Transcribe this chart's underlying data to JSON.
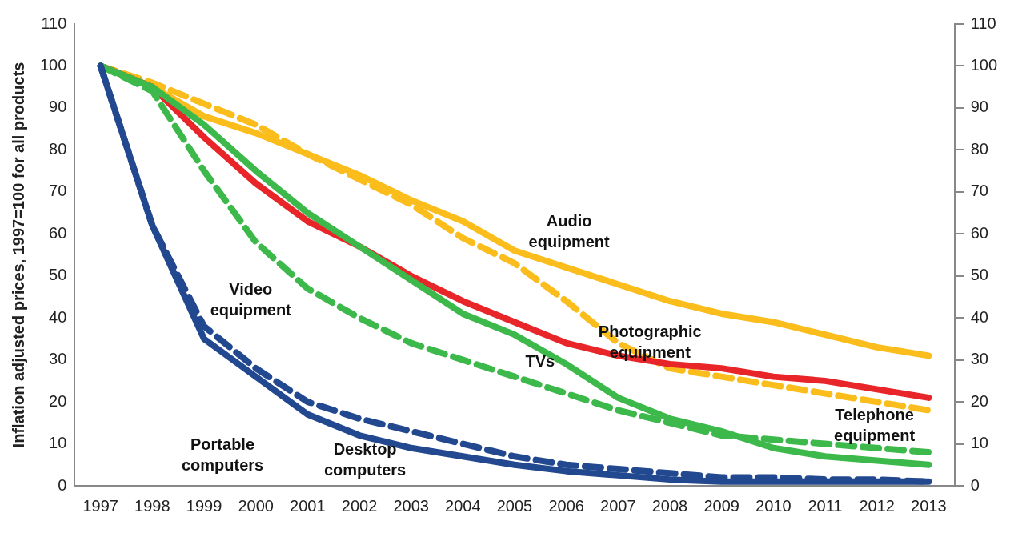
{
  "chart_data": {
    "type": "line",
    "ylabel": "Inflation adjusted prices, 1997=100 for all products",
    "categories": [
      "1997",
      "1998",
      "1999",
      "2000",
      "2001",
      "2002",
      "2003",
      "2004",
      "2005",
      "2006",
      "2007",
      "2008",
      "2009",
      "2010",
      "2011",
      "2012",
      "2013"
    ],
    "ylim": [
      0,
      110
    ],
    "yticks": [
      0,
      10,
      20,
      30,
      40,
      50,
      60,
      70,
      80,
      90,
      100,
      110
    ],
    "y2lim": [
      0,
      110
    ],
    "y2ticks": [
      0,
      10,
      20,
      30,
      40,
      50,
      60,
      70,
      80,
      90,
      100,
      110
    ],
    "grid": false,
    "legend": false,
    "marker": "none",
    "series": [
      {
        "name": "Portable computers",
        "color": "#22488f",
        "line_style": "solid",
        "values": [
          100,
          62,
          35,
          26,
          17,
          12,
          9,
          7,
          5,
          3.5,
          2.5,
          1.5,
          1,
          1,
          1,
          1,
          1
        ]
      },
      {
        "name": "Desktop computers",
        "color": "#22488f",
        "line_style": "dashed",
        "values": [
          100,
          62,
          38,
          28,
          20,
          16,
          13,
          10,
          7,
          5,
          4,
          3,
          2,
          2,
          1.5,
          1.5,
          1
        ]
      },
      {
        "name": "Video equipment",
        "color": "#3cb94a",
        "line_style": "dashed",
        "values": [
          100,
          94,
          75,
          58,
          47,
          40,
          34,
          30,
          26,
          22,
          18,
          15,
          12,
          11,
          10,
          9,
          8
        ]
      },
      {
        "name": "TVs",
        "color": "#3cb94a",
        "line_style": "solid",
        "values": [
          100,
          95,
          86,
          75,
          65,
          57,
          49,
          41,
          36,
          29,
          21,
          16,
          13,
          9,
          7,
          6,
          5
        ]
      },
      {
        "name": "Photographic equipment",
        "color": "#e8262a",
        "line_style": "solid",
        "values": [
          100,
          95,
          83,
          72,
          63,
          57,
          50,
          44,
          39,
          34,
          31,
          29,
          28,
          26,
          25,
          23,
          21
        ]
      },
      {
        "name": "Audio equipment",
        "color": "#fbbd1c",
        "line_style": "solid",
        "values": [
          100,
          95,
          88,
          84,
          79,
          74,
          68,
          63,
          56,
          52,
          48,
          44,
          41,
          39,
          36,
          33,
          31
        ]
      },
      {
        "name": "Telephone equipment",
        "color": "#fbbd1c",
        "line_style": "dashed",
        "values": [
          100,
          96,
          91,
          86,
          79,
          73,
          67,
          59,
          53,
          44,
          34,
          28,
          26,
          24,
          22,
          20,
          18
        ]
      }
    ]
  }
}
